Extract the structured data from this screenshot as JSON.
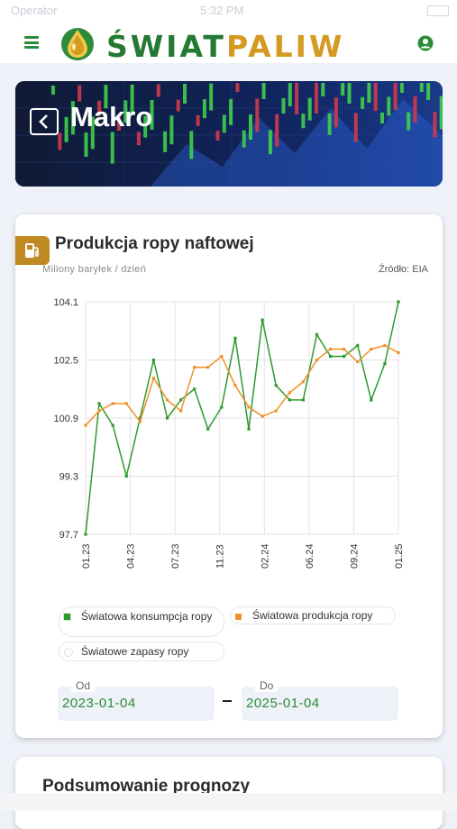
{
  "status_bar": {
    "carrier": "Operator",
    "time": "5:32 PM"
  },
  "app": {
    "brand_part1": "ŚWIAT",
    "brand_part2": "PALIW",
    "colors": {
      "green": "#2e8b3a",
      "gold": "#d49a22"
    }
  },
  "banner": {
    "title": "Makro",
    "back_icon": "chevron-left-icon"
  },
  "chart_card": {
    "title": "Produkcja ropy naftowej",
    "unit": "Miliony baryłek / dzień",
    "source": "Źródło: EIA",
    "icon": "fuel-pump-icon"
  },
  "chart_data": {
    "type": "line",
    "ylim": [
      97.7,
      104.1
    ],
    "yticks": [
      "104.1",
      "102.5",
      "100.9",
      "99.3",
      "97.7"
    ],
    "xticks": [
      "01.23",
      "04.23",
      "07.23",
      "11.23",
      "02.24",
      "06.24",
      "09.24",
      "01.25"
    ],
    "grid": true,
    "series": [
      {
        "name": "Światowa konsumpcja ropy",
        "color": "#2e9a2e",
        "values": [
          97.7,
          101.3,
          100.7,
          99.3,
          100.9,
          102.5,
          100.9,
          101.4,
          101.7,
          100.6,
          101.2,
          103.1,
          100.6,
          103.6,
          101.8,
          101.4,
          101.4,
          103.2,
          102.6,
          102.6,
          102.9,
          101.4,
          102.4,
          104.1
        ],
        "visible": true
      },
      {
        "name": "Światowa produkcja ropy",
        "color": "#f0902a",
        "values": [
          100.7,
          101.1,
          101.3,
          101.3,
          100.8,
          102.0,
          101.4,
          101.1,
          102.3,
          102.3,
          102.6,
          101.8,
          101.2,
          100.95,
          101.1,
          101.6,
          101.9,
          102.5,
          102.8,
          102.8,
          102.45,
          102.8,
          102.9,
          102.7
        ],
        "visible": true
      },
      {
        "name": "Światowe zapasy ropy",
        "color": "#ffffff",
        "values": [],
        "visible": false
      }
    ]
  },
  "legend": [
    "Światowa konsumpcja ropy",
    "Światowa produkcja ropy",
    "Światowe zapasy ropy"
  ],
  "date_range": {
    "from_label": "Od",
    "from_value": "2023-01-04",
    "to_label": "Do",
    "to_value": "2025-01-04"
  },
  "forecast_card": {
    "title": "Podsumowanie prognozy"
  }
}
